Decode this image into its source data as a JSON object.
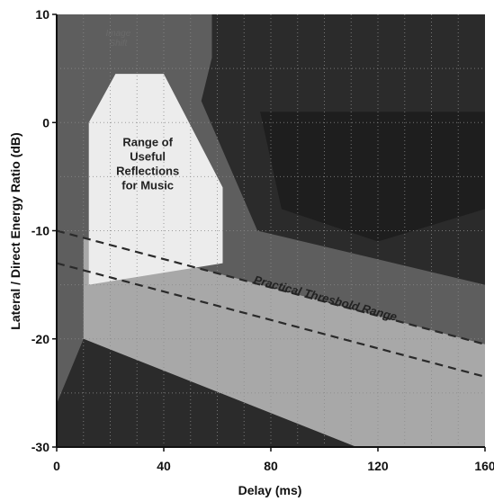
{
  "chart_data": {
    "type": "area",
    "xlabel": "Delay (ms)",
    "ylabel": "Lateral / Direct Energy Ratio (dB)",
    "xlim": [
      0,
      160
    ],
    "ylim": [
      -30,
      10
    ],
    "xticks": [
      0,
      40,
      80,
      120,
      160
    ],
    "yticks": [
      10,
      0,
      -10,
      -20,
      -30
    ],
    "grid": true,
    "colors": {
      "dark": "#2b2b2b",
      "darkest": "#1e1e1e",
      "medium": "#5e5e5e",
      "light": "#a8a8a8",
      "lightest": "#ececec",
      "dash": "#2a2a2a"
    },
    "regions": [
      {
        "label": "Image Shift",
        "polygon": [
          [
            1,
            10
          ],
          [
            58,
            10
          ],
          [
            58,
            6
          ],
          [
            54,
            2
          ],
          [
            75,
            -10
          ],
          [
            160,
            -15
          ],
          [
            160,
            10
          ]
        ]
      },
      {
        "label": "Range of Useful Reflections for Music",
        "polygon": [
          [
            12,
            0
          ],
          [
            22,
            4.5
          ],
          [
            40,
            4.5
          ],
          [
            62,
            -6
          ],
          [
            62,
            -13
          ],
          [
            12,
            -15
          ]
        ]
      },
      {
        "label": "Practical Threshold Range",
        "upper": [
          [
            0,
            -10
          ],
          [
            160,
            -20.5
          ]
        ],
        "lower": [
          [
            0,
            -13
          ],
          [
            160,
            -23.5
          ]
        ]
      }
    ],
    "annotations": {
      "useful_lines": [
        "Range of",
        "Useful",
        "Reflections",
        "for Music"
      ],
      "threshold": "Practical Threshold Range",
      "corner_lines": [
        "Image",
        "Shift"
      ]
    }
  }
}
